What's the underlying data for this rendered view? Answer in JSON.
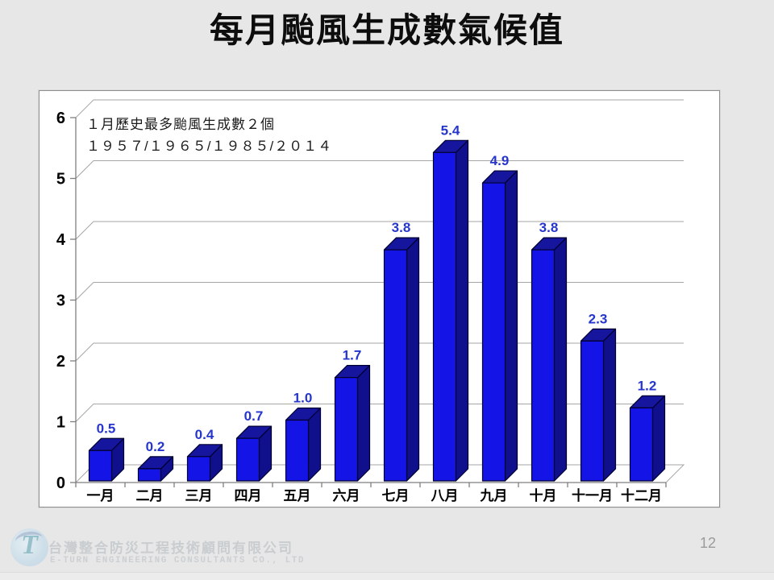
{
  "slide": {
    "title": "每月颱風生成數氣候值",
    "page_number": "12"
  },
  "chart_data": {
    "type": "bar",
    "style": "3d",
    "title": "每月颱風生成數氣候值",
    "categories": [
      "一月",
      "二月",
      "三月",
      "四月",
      "五月",
      "六月",
      "七月",
      "八月",
      "九月",
      "十月",
      "十一月",
      "十二月"
    ],
    "values": [
      0.5,
      0.2,
      0.4,
      0.7,
      1.0,
      1.7,
      3.8,
      5.4,
      4.9,
      3.8,
      2.3,
      1.2
    ],
    "value_labels": [
      "0.5",
      "0.2",
      "0.4",
      "0.7",
      "1.0",
      "1.7",
      "3.8",
      "5.4",
      "4.9",
      "3.8",
      "2.3",
      "1.2"
    ],
    "xlabel": "",
    "ylabel": "",
    "ylim": [
      0,
      6
    ],
    "yticks": [
      "0",
      "1",
      "2",
      "3",
      "4",
      "5",
      "6"
    ],
    "grid": true,
    "legend": "none",
    "annotation": {
      "line1": "１月歷史最多颱風生成數２個",
      "line2": "１９５７/１９６５/１９８５/２０１４"
    },
    "colors": {
      "bar_front": "#1414e6",
      "bar_top": "#15159e",
      "bar_side": "#10108c",
      "bar_stroke": "#000030",
      "value_label": "#2636cc",
      "gridline": "#a6a6a6",
      "axis": "#7f7f7f",
      "tick_label": "#000000",
      "plot_background": "#ffffff"
    }
  },
  "footer": {
    "company_zh": "台灣整合防災工程技術顧問有限公司",
    "company_en": "E-TURN ENGINEERING CONSULTANTS CO., LTD",
    "logo_letter": "T"
  }
}
